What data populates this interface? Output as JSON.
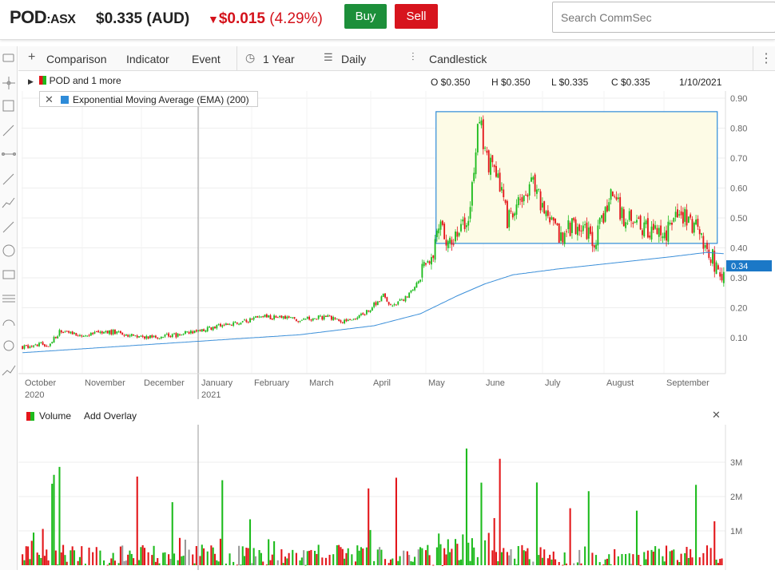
{
  "header": {
    "symbol": "POD",
    "exchange": ":ASX",
    "price": "$0.335 (AUD)",
    "change_arrow": "▼",
    "change_value": "$0.015",
    "change_pct": "(4.29%)",
    "buy_label": "Buy",
    "sell_label": "Sell",
    "search_placeholder": "Search CommSec"
  },
  "toolbar": {
    "comparison_label": "Comparison",
    "indicator_label": "Indicator",
    "event_label": "Event",
    "period_label": "1 Year",
    "interval_label": "Daily",
    "chart_type_label": "Candlestick"
  },
  "legend": {
    "series_label": "POD and 1 more",
    "open": "O $0.350",
    "high": "H $0.350",
    "low": "L $0.335",
    "close": "C $0.335",
    "date": "1/10/2021",
    "ema_label": "Exponential Moving Average (EMA) (200)"
  },
  "volume_panel": {
    "volume_label": "Volume",
    "add_overlay_label": "Add Overlay"
  },
  "colors": {
    "up": "#1dbb1d",
    "down": "#e3161a",
    "ema": "#3b8fd9",
    "highlight_fill": "#fdfbe6",
    "highlight_stroke": "#2e8bd8",
    "buy": "#1c8f3a",
    "sell": "#d7141d"
  },
  "icons": [
    "dropdown-arrow-icon",
    "pointer-icon",
    "text-tool-icon",
    "line-tool-icon",
    "segment-tool-icon",
    "ray-tool-icon",
    "channel-tool-icon",
    "arrow-tool-icon",
    "circle-tool-icon",
    "rectangle-tool-icon",
    "fibonacci-tool-icon",
    "arc-tool-icon",
    "spiral-tool-icon",
    "measure-tool-icon",
    "plus-icon",
    "clock-icon",
    "interval-icon",
    "candlestick-icon",
    "more-menu-icon",
    "close-icon"
  ],
  "chart_data": {
    "type": "candlestick",
    "price_axis_ticks": [
      "0.90",
      "0.80",
      "0.70",
      "0.60",
      "0.50",
      "0.40",
      "0.30",
      "0.20",
      "0.10"
    ],
    "current_price_label": "0.34",
    "volume_axis_ticks": [
      "3M",
      "2M",
      "1M"
    ],
    "x_labels": [
      {
        "label": "October",
        "sub": "2020"
      },
      {
        "label": "November",
        "sub": ""
      },
      {
        "label": "December",
        "sub": ""
      },
      {
        "label": "January",
        "sub": "2021"
      },
      {
        "label": "February",
        "sub": ""
      },
      {
        "label": "March",
        "sub": ""
      },
      {
        "label": "April",
        "sub": ""
      },
      {
        "label": "May",
        "sub": ""
      },
      {
        "label": "June",
        "sub": ""
      },
      {
        "label": "July",
        "sub": ""
      },
      {
        "label": "August",
        "sub": ""
      },
      {
        "label": "September",
        "sub": ""
      }
    ],
    "close_anchors": [
      [
        0,
        0.07
      ],
      [
        15,
        0.08
      ],
      [
        20,
        0.12
      ],
      [
        35,
        0.11
      ],
      [
        50,
        0.12
      ],
      [
        65,
        0.1
      ],
      [
        85,
        0.11
      ],
      [
        100,
        0.13
      ],
      [
        115,
        0.15
      ],
      [
        130,
        0.17
      ],
      [
        150,
        0.16
      ],
      [
        165,
        0.17
      ],
      [
        175,
        0.15
      ],
      [
        185,
        0.18
      ],
      [
        195,
        0.24
      ],
      [
        200,
        0.2
      ],
      [
        208,
        0.24
      ],
      [
        215,
        0.3
      ],
      [
        222,
        0.4
      ],
      [
        226,
        0.46
      ],
      [
        232,
        0.42
      ],
      [
        238,
        0.48
      ],
      [
        242,
        0.52
      ],
      [
        247,
        0.85
      ],
      [
        250,
        0.7
      ],
      [
        253,
        0.68
      ],
      [
        258,
        0.6
      ],
      [
        262,
        0.5
      ],
      [
        268,
        0.55
      ],
      [
        275,
        0.62
      ],
      [
        280,
        0.56
      ],
      [
        290,
        0.44
      ],
      [
        300,
        0.48
      ],
      [
        310,
        0.42
      ],
      [
        318,
        0.6
      ],
      [
        325,
        0.5
      ],
      [
        335,
        0.47
      ],
      [
        345,
        0.43
      ],
      [
        355,
        0.52
      ],
      [
        365,
        0.47
      ],
      [
        372,
        0.38
      ],
      [
        376,
        0.31
      ],
      [
        380,
        0.34
      ]
    ],
    "ema_anchors": [
      [
        0,
        0.05
      ],
      [
        50,
        0.07
      ],
      [
        100,
        0.09
      ],
      [
        150,
        0.11
      ],
      [
        190,
        0.14
      ],
      [
        215,
        0.18
      ],
      [
        235,
        0.24
      ],
      [
        250,
        0.28
      ],
      [
        265,
        0.31
      ],
      [
        290,
        0.33
      ],
      [
        320,
        0.35
      ],
      [
        350,
        0.37
      ],
      [
        370,
        0.385
      ],
      [
        380,
        0.38
      ]
    ],
    "highlight_range": {
      "from_bar": 224,
      "to_bar": 375,
      "low": 0.415,
      "high": 0.855
    }
  }
}
